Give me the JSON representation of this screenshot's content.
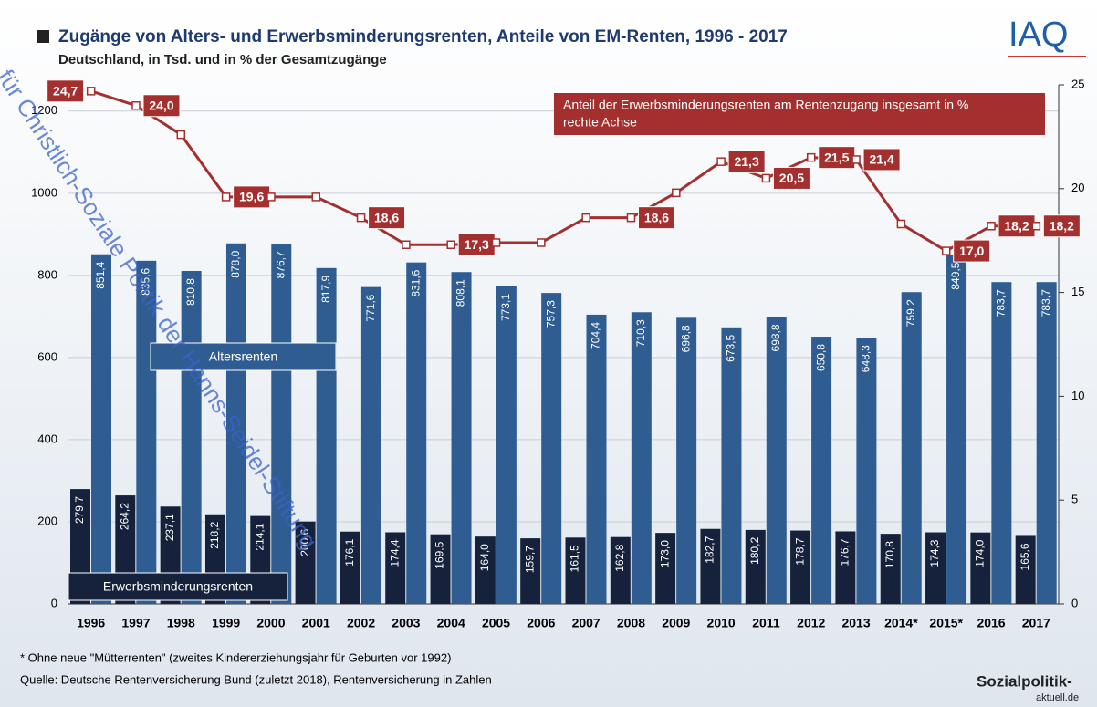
{
  "chart_data": {
    "type": "bar_line",
    "title": "Zugänge von Alters- und Erwerbsminderungsrenten, Anteile von EM-Renten, 1996 - 2017",
    "subtitle": "Deutschland, in Tsd. und in % der Gesamtzugänge",
    "categories": [
      "1996",
      "1997",
      "1998",
      "1999",
      "2000",
      "2001",
      "2002",
      "2003",
      "2004",
      "2005",
      "2006",
      "2007",
      "2008",
      "2009",
      "2010",
      "2011",
      "2012",
      "2013",
      "2014*",
      "2015*",
      "2016",
      "2017"
    ],
    "series": [
      {
        "name": "Erwerbsminderungsrenten",
        "color": "#16223b",
        "values": [
          279.7,
          264.2,
          237.1,
          218.2,
          214.1,
          200.6,
          176.1,
          174.4,
          169.5,
          164.0,
          159.7,
          161.5,
          162.8,
          173.0,
          182.7,
          180.2,
          178.7,
          176.7,
          170.8,
          174.3,
          174.0,
          165.6
        ],
        "value_labels": [
          "279,7",
          "264,2",
          "237,1",
          "218,2",
          "214,1",
          "200,6",
          "176,1",
          "174,4",
          "169,5",
          "164,0",
          "159,7",
          "161,5",
          "162,8",
          "173,0",
          "182,7",
          "180,2",
          "178,7",
          "176,7",
          "170,8",
          "174,3",
          "174,0",
          "165,6"
        ]
      },
      {
        "name": "Altersrenten",
        "color": "#2f5d92",
        "values": [
          851.4,
          835.6,
          810.8,
          878.0,
          876.7,
          817.9,
          771.6,
          831.6,
          808.1,
          773.1,
          757.3,
          704.4,
          710.3,
          696.8,
          673.5,
          698.8,
          650.8,
          648.3,
          759.2,
          849.5,
          783.7,
          783.7
        ],
        "value_labels": [
          "851,4",
          "835,6",
          "810,8",
          "878,0",
          "876,7",
          "817,9",
          "771,6",
          "831,6",
          "808,1",
          "773,1",
          "757,3",
          "704,4",
          "710,3",
          "696,8",
          "673,5",
          "698,8",
          "650,8",
          "648,3",
          "759,2",
          "849,5",
          "783,7",
          "783,7"
        ]
      },
      {
        "name": "Anteil der Erwerbsminderungsrenten am Rentenzugang insgesamt in %",
        "color": "#a3302f",
        "axis": "y2",
        "values": [
          24.7,
          24.0,
          22.6,
          19.6,
          19.6,
          19.6,
          18.6,
          17.3,
          17.3,
          17.4,
          17.4,
          18.6,
          18.6,
          19.8,
          21.3,
          20.5,
          21.5,
          21.4,
          18.3,
          17.0,
          18.2,
          18.2
        ],
        "value_labels": [
          "24,7",
          "24,0",
          null,
          "19,6",
          null,
          null,
          "18,6",
          null,
          "17,3",
          null,
          null,
          null,
          "18,6",
          null,
          "21,3",
          "20,5",
          "21,5",
          "21,4",
          null,
          "17,0",
          "18,2",
          "18,2"
        ]
      }
    ],
    "line_note": "rechte Achse",
    "ylim": [
      0,
      1264
    ],
    "yticks": [
      0,
      200,
      400,
      600,
      800,
      1000,
      1200
    ],
    "y2lim": [
      0,
      25
    ],
    "y2ticks": [
      0,
      5,
      10,
      15,
      20,
      25
    ],
    "grid": true,
    "footnote": "* Ohne neue \"Mütterrenten\" (zweites Kindererziehungsjahr für Geburten vor 1992)",
    "source": "Quelle: Deutsche Rentenversicherung Bund (zuletzt 2018), Rentenversicherung in Zahlen",
    "logo": "IAQ",
    "logo2": "Sozialpolitik-",
    "logo2_sub": "aktuell.de",
    "watermark": "für Christlich-Soziale Politik der Hanns-Seidel-Stiftung"
  }
}
